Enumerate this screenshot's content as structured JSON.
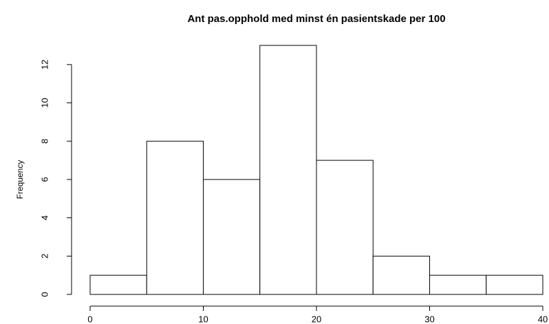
{
  "chart_data": {
    "type": "histogram",
    "title": "Ant pas.opphold med minst én pasientskade per 100",
    "ylabel": "Frequency",
    "bins": [
      0,
      5,
      10,
      15,
      20,
      25,
      30,
      35,
      40
    ],
    "values": [
      1,
      8,
      6,
      13,
      7,
      2,
      1,
      1
    ],
    "color": "#ffffff",
    "xlim": [
      0,
      40
    ],
    "xticks": [
      0,
      10,
      20,
      30,
      40
    ],
    "ylim": [
      0,
      13
    ],
    "yticks": [
      0,
      2,
      4,
      6,
      8,
      10,
      12
    ]
  }
}
